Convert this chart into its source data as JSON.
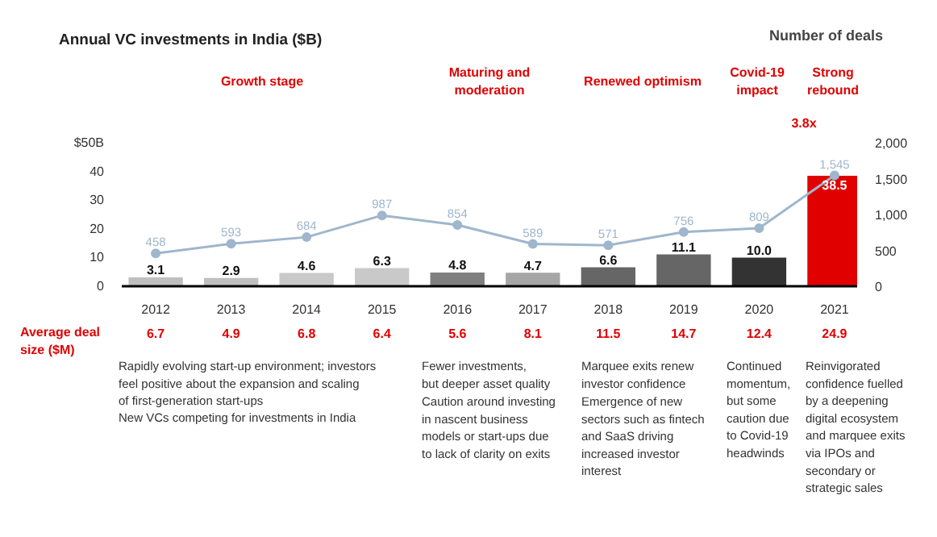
{
  "chart_data": {
    "type": "bar",
    "title": "Annual VC investments in India ($B)",
    "categories": [
      "2012",
      "2013",
      "2014",
      "2015",
      "2016",
      "2017",
      "2018",
      "2019",
      "2020",
      "2021"
    ],
    "series": [
      {
        "colors": [
          "#bfbfbf",
          "#bfbfbf",
          "#c9c9c9",
          "#c9c9c9",
          "#7f7f7f",
          "#a6a6a6",
          "#666666",
          "#666666",
          "#333333",
          "#e00000"
        ],
        "values": [
          3.1,
          2.9,
          4.6,
          6.3,
          4.8,
          4.7,
          6.6,
          11.1,
          10.0,
          38.5
        ],
        "value_labels": [
          "3.1",
          "2.9",
          "4.6",
          "6.3",
          "4.8",
          "4.7",
          "6.6",
          "11.1",
          "10.0",
          "38.5"
        ]
      },
      {
        "type": "line",
        "name": "Number of deals",
        "color": "#9fb6cc",
        "axis": "y2",
        "marker": "circle",
        "values": [
          458,
          593,
          684,
          987,
          854,
          589,
          571,
          756,
          809,
          1545
        ],
        "value_labels": [
          "458",
          "593",
          "684",
          "987",
          "854",
          "589",
          "571",
          "756",
          "809",
          "1,545"
        ]
      }
    ],
    "ylim": [
      0,
      50
    ],
    "yticks": [
      0,
      10,
      20,
      30,
      40,
      {
        "value": 50,
        "label": "$50B"
      }
    ],
    "y2lim": [
      0,
      2000
    ],
    "y2ticks": [
      0,
      500,
      {
        "value": 1000,
        "label": "1,000"
      },
      {
        "value": 1500,
        "label": "1,500"
      },
      {
        "value": 2000,
        "label": "2,000"
      }
    ],
    "grid": false,
    "legend": "top right",
    "annotations": [
      "Growth stage",
      "Maturing and\nmoderation",
      "Renewed optimism",
      "Covid-19\nimpact",
      "Strong\nrebound",
      "3.8x",
      "Average deal\nsize ($M)",
      "6.7",
      "4.9",
      "6.8",
      "6.4",
      "5.6",
      "8.1",
      "11.5",
      "14.7",
      "12.4",
      "24.9",
      "Rapidly evolving start-up environment; investors\nfeel positive about the expansion and scaling\nof first-generation start-ups",
      "New VCs competing for investments in India",
      "Fewer investments,\nbut deeper asset quality",
      "Caution around investing\nin nascent business\nmodels or start-ups due\nto lack of clarity on exits",
      "Marquee exits renew\ninvestor confidence",
      "Emergence of new\nsectors such as fintech\nand SaaS driving\nincreased investor\ninterest",
      "Continued\nmomentum,\nbut some\ncaution due\nto Covid-19\nheadwinds",
      "Reinvigorated\nconfidence fuelled\nby a deepening\ndigital ecosystem\nand marquee exits\nvia IPOs and\nsecondary or\nstrategic sales"
    ]
  }
}
